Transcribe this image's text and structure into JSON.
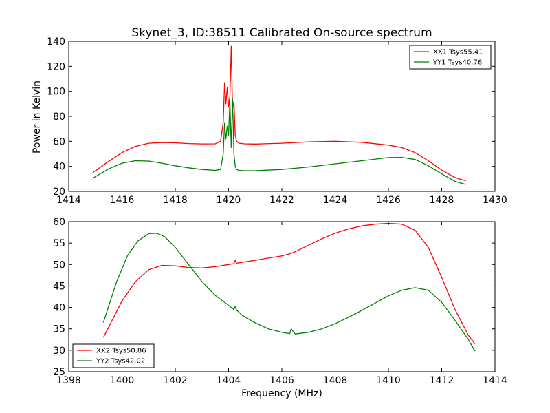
{
  "chart_data": [
    {
      "type": "line",
      "title": "Skynet_3, ID:38511 Calibrated On-source spectrum",
      "xlabel": "",
      "ylabel": "Power in Kelvin",
      "xlim": [
        1414,
        1430
      ],
      "ylim": [
        20,
        140
      ],
      "xticks": [
        1414,
        1416,
        1418,
        1420,
        1422,
        1424,
        1426,
        1428,
        1430
      ],
      "yticks": [
        20,
        40,
        60,
        80,
        100,
        120,
        140
      ],
      "legend_position": "top-right",
      "grid": false,
      "series": [
        {
          "name": "XX1 Tsys55.41",
          "color": "#ff0000",
          "x": [
            1414.9,
            1415.5,
            1416,
            1416.5,
            1417,
            1417.5,
            1418,
            1418.5,
            1419,
            1419.5,
            1419.7,
            1419.8,
            1419.85,
            1419.9,
            1419.95,
            1420.0,
            1420.05,
            1420.1,
            1420.15,
            1420.2,
            1420.25,
            1420.3,
            1420.4,
            1420.6,
            1421,
            1422,
            1423,
            1424,
            1425,
            1426,
            1426.5,
            1427,
            1427.5,
            1428,
            1428.5,
            1428.9
          ],
          "y": [
            35,
            44,
            51,
            56,
            58.5,
            59,
            58.8,
            58.2,
            57.9,
            58,
            60,
            75,
            107,
            90,
            103,
            88,
            95,
            136,
            85,
            92,
            65,
            60,
            58.5,
            58,
            57.8,
            58.5,
            59.5,
            60,
            59.2,
            57,
            55,
            51,
            44.5,
            37,
            31,
            28.5
          ]
        },
        {
          "name": "YY1 Tsys40.76",
          "color": "#008000",
          "x": [
            1414.9,
            1415.5,
            1416,
            1416.5,
            1417,
            1417.5,
            1418,
            1418.5,
            1419,
            1419.5,
            1419.7,
            1419.8,
            1419.85,
            1419.9,
            1419.95,
            1420.0,
            1420.05,
            1420.1,
            1420.15,
            1420.2,
            1420.25,
            1420.3,
            1420.4,
            1420.6,
            1421,
            1422,
            1423,
            1424,
            1425,
            1426,
            1426.5,
            1427,
            1427.5,
            1428,
            1428.5,
            1428.9
          ],
          "y": [
            30.5,
            38,
            42.5,
            44.5,
            44.2,
            42.5,
            40.5,
            38.8,
            37.5,
            36.8,
            37.5,
            50,
            75,
            62,
            72,
            65,
            92,
            55,
            94,
            50,
            40,
            37.5,
            36.8,
            36.5,
            36.5,
            37.5,
            39.5,
            42,
            44.5,
            47,
            47.2,
            45.5,
            40.5,
            34,
            28,
            25.5
          ]
        }
      ]
    },
    {
      "type": "line",
      "title": "",
      "xlabel": "Frequency (MHz)",
      "ylabel": "",
      "xlim": [
        1398,
        1414
      ],
      "ylim": [
        25,
        60
      ],
      "xticks": [
        1398,
        1400,
        1402,
        1404,
        1406,
        1408,
        1410,
        1412,
        1414
      ],
      "yticks": [
        25,
        30,
        35,
        40,
        45,
        50,
        55,
        60
      ],
      "legend_position": "bottom-left",
      "grid": false,
      "series": [
        {
          "name": "XX2 Tsys50.86",
          "color": "#ff0000",
          "x": [
            1399.3,
            1400,
            1400.5,
            1401,
            1401.5,
            1402,
            1402.5,
            1403,
            1403.5,
            1404,
            1404.2,
            1404.25,
            1404.3,
            1404.5,
            1405,
            1405.5,
            1406,
            1406.3,
            1406.5,
            1407,
            1407.5,
            1408,
            1408.5,
            1409,
            1409.5,
            1410,
            1410.5,
            1411,
            1411.5,
            1412,
            1412.5,
            1413,
            1413.25
          ],
          "y": [
            33,
            41.5,
            46,
            48.8,
            49.8,
            49.7,
            49.3,
            49.2,
            49.5,
            50,
            50.2,
            51,
            50.3,
            50.5,
            51,
            51.5,
            52,
            52.5,
            53,
            54.5,
            56,
            57.3,
            58.3,
            59,
            59.4,
            59.6,
            59.4,
            58,
            54,
            47,
            39.5,
            33.5,
            31.5
          ]
        },
        {
          "name": "YY2 Tsys42.02",
          "color": "#008000",
          "x": [
            1399.3,
            1399.8,
            1400.2,
            1400.6,
            1401,
            1401.3,
            1401.6,
            1402,
            1402.5,
            1403,
            1403.5,
            1404,
            1404.2,
            1404.25,
            1404.3,
            1404.5,
            1405,
            1405.5,
            1406,
            1406.3,
            1406.35,
            1406.5,
            1407,
            1407.5,
            1408,
            1408.5,
            1409,
            1409.5,
            1410,
            1410.5,
            1411,
            1411.5,
            1412,
            1412.5,
            1413,
            1413.25
          ],
          "y": [
            36.5,
            46,
            52,
            55.5,
            57.2,
            57.3,
            56.5,
            54,
            50,
            46,
            42.8,
            40.5,
            39.5,
            40.2,
            39.4,
            38.2,
            36.4,
            35,
            34.2,
            33.9,
            35,
            33.8,
            34.2,
            35,
            36.2,
            37.7,
            39.3,
            41,
            42.7,
            44,
            44.6,
            44,
            41.2,
            37,
            32.5,
            29.8
          ]
        }
      ]
    }
  ]
}
